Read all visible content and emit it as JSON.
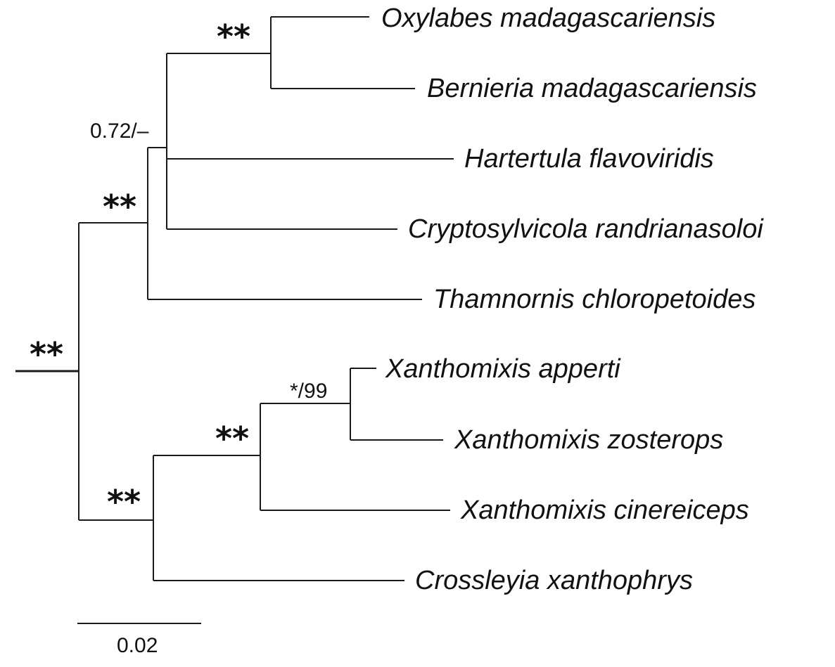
{
  "taxa": [
    "Oxylabes madagascariensis",
    "Bernieria madagascariensis",
    "Hartertula flavoviridis",
    "Cryptosylvicola randrianasoloi",
    "Thamnornis chloropetoides",
    "Xanthomixis apperti",
    "Xanthomixis zosterops",
    "Xanthomixis cinereiceps",
    "Crossleyia xanthophrys"
  ],
  "support": {
    "root": "**",
    "oxylabes_bernieria": "**",
    "malagasy_group": "0.72/–",
    "thamnornis_group": "**",
    "xanthomixis_crossleyia": "**",
    "xanthomixis_clade": "**",
    "apperti_zosterops": "*/99"
  },
  "scale_bar": {
    "label": "0.02",
    "value": 0.02
  }
}
